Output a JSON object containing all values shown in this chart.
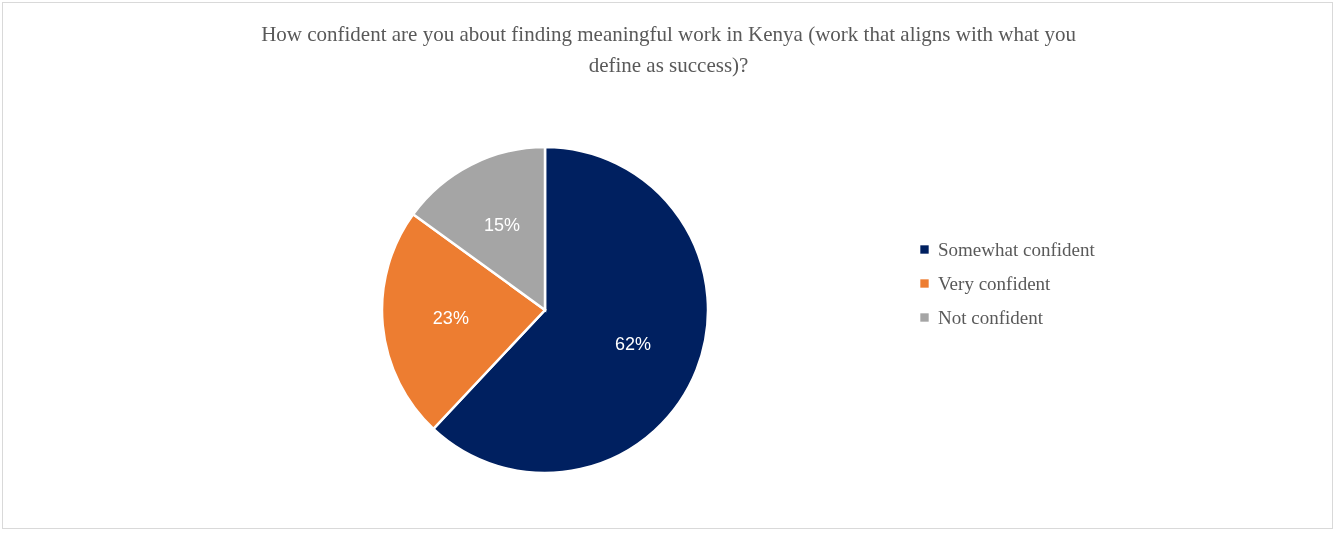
{
  "chart_data": {
    "type": "pie",
    "title": "How confident are you about finding meaningful work in Kenya (work that aligns with what you define as success)?",
    "categories": [
      "Somewhat confident",
      "Very confident",
      "Not confident"
    ],
    "values": [
      62,
      23,
      15
    ],
    "colors": [
      "#002060",
      "#ed7d31",
      "#a5a5a5"
    ],
    "value_labels": [
      "62%",
      "23%",
      "15%"
    ],
    "legend": "right"
  }
}
